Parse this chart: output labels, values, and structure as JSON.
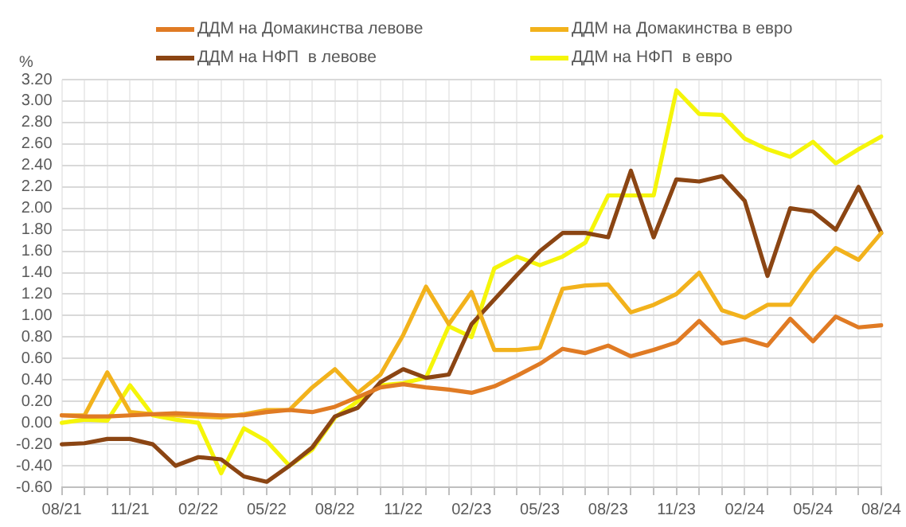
{
  "chart_data": {
    "type": "line",
    "ylabel": "%",
    "categories": [
      "08/21",
      null,
      null,
      "11/21",
      null,
      null,
      "02/22",
      null,
      null,
      "05/22",
      null,
      null,
      "08/22",
      null,
      null,
      "11/22",
      null,
      null,
      "02/23",
      null,
      null,
      "05/23",
      null,
      null,
      "08/23",
      null,
      null,
      "11/23",
      null,
      null,
      "02/24",
      null,
      null,
      "05/24",
      null,
      null,
      "08/24"
    ],
    "series": [
      {
        "name": "ДДМ на Домакинства левове",
        "color": "#e07b24",
        "values": [
          0.07,
          0.06,
          0.06,
          0.07,
          0.08,
          0.09,
          0.08,
          0.07,
          0.07,
          0.1,
          0.12,
          0.1,
          0.15,
          0.24,
          0.33,
          0.36,
          0.33,
          0.31,
          0.28,
          0.34,
          0.44,
          0.55,
          0.69,
          0.65,
          0.72,
          0.62,
          0.68,
          0.75,
          0.95,
          0.74,
          0.78,
          0.72,
          0.97,
          0.76,
          0.99,
          0.89,
          0.91
        ]
      },
      {
        "name": "ДДМ на Домакинства в евро",
        "color": "#f2b21c",
        "values": [
          0.07,
          0.07,
          0.47,
          0.1,
          0.08,
          0.07,
          0.06,
          0.05,
          0.08,
          0.12,
          0.12,
          0.33,
          0.5,
          0.28,
          0.45,
          0.82,
          1.27,
          0.92,
          1.22,
          0.68,
          0.68,
          0.7,
          1.25,
          1.28,
          1.29,
          1.03,
          1.1,
          1.2,
          1.4,
          1.05,
          0.98,
          1.1,
          1.1,
          1.4,
          1.63,
          1.52,
          1.77
        ]
      },
      {
        "name": "ДДМ на НФП  в левове",
        "color": "#8b4513",
        "values": [
          -0.2,
          -0.19,
          -0.15,
          -0.15,
          -0.2,
          -0.4,
          -0.32,
          -0.34,
          -0.5,
          -0.55,
          -0.4,
          -0.23,
          0.06,
          0.14,
          0.38,
          0.5,
          0.42,
          0.45,
          0.92,
          1.15,
          1.38,
          1.6,
          1.77,
          1.77,
          1.73,
          2.35,
          1.73,
          2.27,
          2.25,
          2.3,
          2.07,
          1.37,
          2.0,
          1.97,
          1.8,
          2.2,
          1.77
        ]
      },
      {
        "name": "ДДМ на НФП  в евро",
        "color": "#f5f50a",
        "values": [
          0.0,
          0.03,
          0.02,
          0.35,
          0.07,
          0.03,
          0.0,
          -0.47,
          -0.05,
          -0.17,
          -0.4,
          -0.25,
          0.05,
          0.2,
          0.35,
          0.37,
          0.42,
          0.9,
          0.8,
          1.44,
          1.55,
          1.47,
          1.55,
          1.68,
          2.12,
          2.12,
          2.12,
          3.1,
          2.88,
          2.87,
          2.65,
          2.55,
          2.48,
          2.62,
          2.42,
          2.55,
          2.67
        ]
      }
    ],
    "ylim": [
      -0.6,
      3.2
    ],
    "yticks": [
      {
        "value": -0.6,
        "label": "-0.60"
      },
      {
        "value": -0.4,
        "label": "-0.40"
      },
      {
        "value": -0.2,
        "label": "-0.20"
      },
      {
        "value": 0,
        "label": "0.00"
      },
      {
        "value": 0.2,
        "label": "0.20"
      },
      {
        "value": 0.4,
        "label": "0.40"
      },
      {
        "value": 0.6,
        "label": "0.60"
      },
      {
        "value": 0.8,
        "label": "0.80"
      },
      {
        "value": 1,
        "label": "1.00"
      },
      {
        "value": 1.2,
        "label": "1.20"
      },
      {
        "value": 1.4,
        "label": "1.40"
      },
      {
        "value": 1.6,
        "label": "1.60"
      },
      {
        "value": 1.8,
        "label": "1.80"
      },
      {
        "value": 2,
        "label": "2.00"
      },
      {
        "value": 2.2,
        "label": "2.20"
      },
      {
        "value": 2.4,
        "label": "2.40"
      },
      {
        "value": 2.6,
        "label": "2.60"
      },
      {
        "value": 2.8,
        "label": "2.80"
      },
      {
        "value": 3,
        "label": "3.00"
      },
      {
        "value": 3.2,
        "label": "3.20"
      }
    ],
    "grid": true,
    "legend": "top",
    "marker": "none",
    "line_style": "solid"
  }
}
